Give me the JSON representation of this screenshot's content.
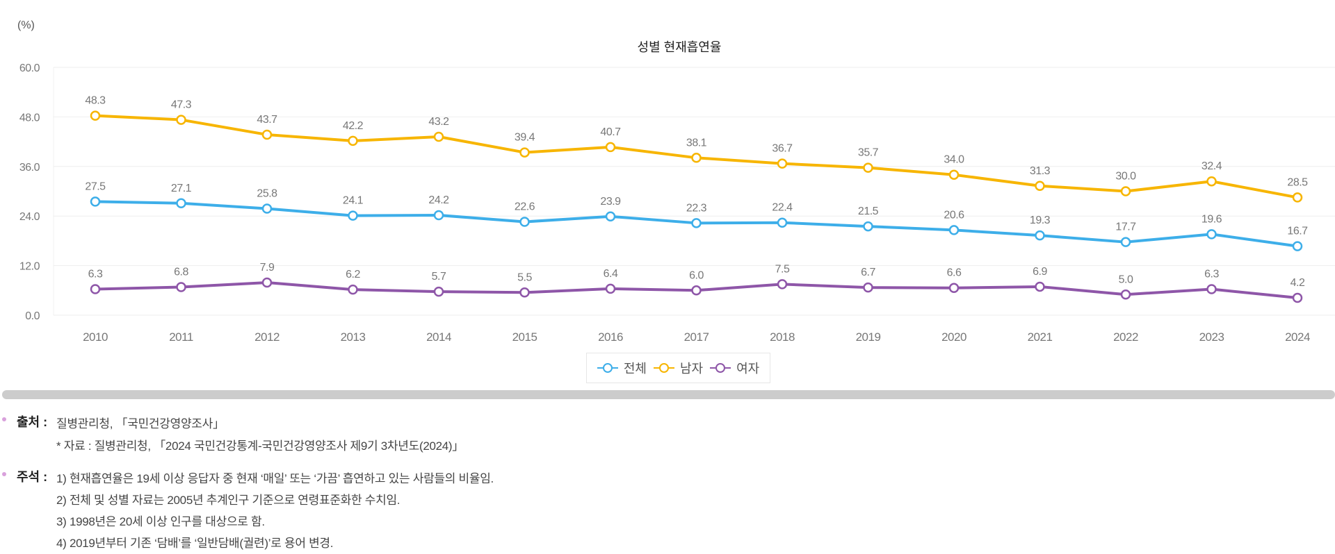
{
  "unit_label": "(%)",
  "chart_data": {
    "type": "line",
    "title": "성별 현재흡연율",
    "xlabel": "",
    "ylabel": "(%)",
    "ylim": [
      0,
      60
    ],
    "yticks": [
      "0.0",
      "12.0",
      "24.0",
      "36.0",
      "48.0",
      "60.0"
    ],
    "grid": true,
    "legend_position": "bottom-center",
    "categories": [
      "2010",
      "2011",
      "2012",
      "2013",
      "2014",
      "2015",
      "2016",
      "2017",
      "2018",
      "2019",
      "2020",
      "2021",
      "2022",
      "2023",
      "2024"
    ],
    "series": [
      {
        "name": "전체",
        "color": "#3daee9",
        "values": [
          27.5,
          27.1,
          25.8,
          24.1,
          24.2,
          22.6,
          23.9,
          22.3,
          22.4,
          21.5,
          20.6,
          19.3,
          17.7,
          19.6,
          16.7
        ]
      },
      {
        "name": "남자",
        "color": "#f7b500",
        "values": [
          48.3,
          47.3,
          43.7,
          42.2,
          43.2,
          39.4,
          40.7,
          38.1,
          36.7,
          35.7,
          34.0,
          31.3,
          30.0,
          32.4,
          28.5
        ]
      },
      {
        "name": "여자",
        "color": "#8e56a8",
        "values": [
          6.3,
          6.8,
          7.9,
          6.2,
          5.7,
          5.5,
          6.4,
          6.0,
          7.5,
          6.7,
          6.6,
          6.9,
          5.0,
          6.3,
          4.2
        ]
      }
    ]
  },
  "notes": {
    "source_label": "출처 :",
    "source_text": "질병관리청, 「국민건강영양조사」",
    "source_sub": "* 자료 : 질병관리청, 「2024 국민건강통계-국민건강영양조사 제9기 3차년도(2024)」",
    "remarks_label": "주석 :",
    "remarks": [
      "1) 현재흡연율은 19세 이상 응답자 중 현재 ‘매일’ 또는 ‘가끔’ 흡연하고 있는 사람들의 비율임.",
      "2) 전체 및 성별 자료는 2005년 추계인구 기준으로 연령표준화한 수치임.",
      "3) 1998년은 20세 이상 인구를 대상으로 함.",
      "4) 2019년부터 기존 ‘담배’를 ‘일반담배(궐련)’로 용어 변경."
    ]
  }
}
